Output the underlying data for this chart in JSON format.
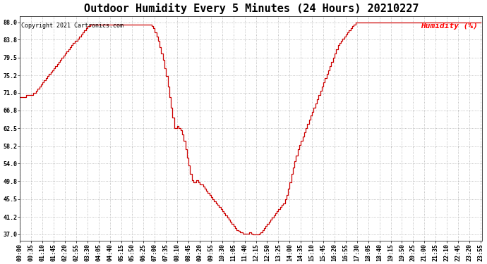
{
  "title": "Outdoor Humidity Every 5 Minutes (24 Hours) 20210227",
  "copyright": "Copyright 2021 Cartronics.com",
  "legend_label": "Humidity (%)",
  "legend_color": "#ff0000",
  "line_color": "#cc0000",
  "background_color": "#ffffff",
  "grid_color": "#999999",
  "yticks": [
    37.0,
    41.2,
    45.5,
    49.8,
    54.0,
    58.2,
    62.5,
    66.8,
    71.0,
    75.2,
    79.5,
    83.8,
    88.0
  ],
  "ymin": 35.5,
  "ymax": 89.5,
  "humidity_values": [
    70.0,
    70.0,
    70.0,
    70.0,
    70.5,
    70.5,
    70.5,
    70.5,
    71.0,
    71.0,
    71.5,
    72.0,
    72.5,
    73.0,
    73.5,
    74.0,
    74.5,
    75.0,
    75.5,
    76.0,
    76.5,
    77.0,
    77.5,
    78.0,
    78.5,
    79.0,
    79.5,
    80.0,
    80.5,
    81.0,
    81.5,
    82.0,
    82.5,
    83.0,
    83.5,
    83.5,
    84.0,
    84.5,
    85.0,
    85.5,
    86.0,
    86.5,
    87.0,
    87.0,
    87.5,
    87.5,
    87.5,
    87.5,
    87.5,
    87.5,
    87.5,
    87.5,
    87.5,
    87.5,
    87.5,
    87.5,
    87.5,
    87.5,
    87.5,
    87.5,
    87.5,
    87.5,
    87.5,
    87.5,
    87.5,
    87.5,
    87.5,
    87.5,
    87.5,
    87.5,
    87.5,
    87.5,
    87.5,
    87.5,
    87.5,
    87.5,
    87.5,
    87.5,
    87.5,
    87.5,
    87.5,
    87.5,
    87.0,
    86.5,
    85.5,
    84.5,
    83.5,
    82.0,
    80.5,
    79.0,
    77.0,
    75.0,
    72.5,
    70.0,
    67.5,
    65.0,
    62.5,
    62.5,
    63.0,
    62.5,
    62.0,
    61.0,
    59.5,
    57.5,
    55.5,
    53.5,
    51.5,
    50.0,
    49.5,
    49.5,
    50.0,
    49.5,
    49.0,
    49.0,
    48.5,
    48.0,
    47.5,
    47.0,
    46.5,
    46.0,
    45.5,
    45.0,
    44.5,
    44.0,
    43.5,
    43.0,
    42.5,
    42.0,
    41.5,
    41.0,
    40.5,
    40.0,
    39.5,
    39.0,
    38.5,
    38.0,
    37.8,
    37.5,
    37.5,
    37.2,
    37.2,
    37.2,
    37.2,
    37.5,
    37.2,
    37.0,
    37.0,
    37.0,
    37.0,
    37.2,
    37.5,
    38.0,
    38.5,
    39.0,
    39.5,
    40.0,
    40.5,
    41.0,
    41.5,
    42.0,
    42.5,
    43.0,
    43.5,
    44.0,
    44.5,
    45.5,
    46.5,
    48.0,
    49.5,
    51.5,
    53.0,
    54.5,
    56.0,
    57.5,
    58.5,
    59.5,
    60.5,
    61.5,
    62.5,
    63.5,
    64.5,
    65.5,
    66.5,
    67.5,
    68.5,
    69.5,
    70.5,
    71.5,
    72.5,
    73.5,
    74.5,
    75.5,
    76.5,
    77.5,
    78.5,
    79.5,
    80.5,
    81.5,
    82.5,
    83.0,
    83.5,
    84.0,
    84.5,
    85.0,
    85.5,
    86.0,
    86.5,
    87.0,
    87.5,
    88.0,
    88.0,
    88.0,
    88.0,
    88.0,
    88.0,
    88.0,
    88.0,
    88.0,
    88.0,
    88.0,
    88.0,
    88.0,
    88.0,
    88.0,
    88.0,
    88.0,
    88.0,
    88.0,
    88.0,
    88.0,
    88.0,
    88.0,
    88.0,
    88.0,
    88.0,
    88.0,
    88.0,
    88.0,
    88.0,
    88.0,
    88.0,
    88.0,
    88.0,
    88.0,
    88.0,
    88.0,
    88.0,
    88.0,
    88.0,
    88.0,
    88.0,
    88.0,
    88.0,
    88.0,
    88.0,
    88.0,
    88.0,
    88.0,
    88.0,
    88.0,
    88.0,
    88.0,
    88.0,
    88.0,
    88.0,
    88.0,
    88.0,
    88.0,
    88.0,
    88.0,
    88.0,
    88.0,
    88.0,
    88.0,
    88.0,
    88.0,
    88.0,
    88.0,
    88.0,
    88.0,
    88.0,
    88.0,
    88.0,
    88.0,
    88.0,
    88.0,
    88.0,
    88.0
  ],
  "xtick_step_minutes": 35,
  "title_fontsize": 11,
  "tick_fontsize": 6,
  "copyright_fontsize": 6,
  "legend_fontsize": 8
}
